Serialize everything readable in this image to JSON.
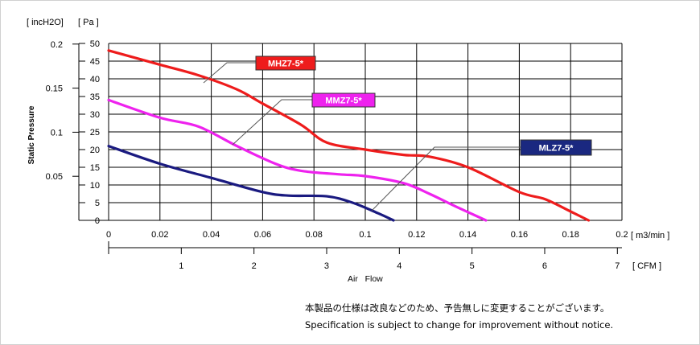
{
  "chart_data": {
    "type": "line",
    "x_unit_top": "[ m3/min ]",
    "x_unit_bottom": "[ CFM ]",
    "xlabel": "Air   Flow",
    "ylabel": "Static Pressure",
    "y_unit_left": "[ incH2O]",
    "y_unit_right": "[ Pa ]",
    "xlim": [
      0,
      0.2
    ],
    "ylim": [
      0,
      50
    ],
    "x_ticks": [
      "0",
      "0.02",
      "0.04",
      "0.06",
      "0.08",
      "0.1",
      "0.12",
      "0.14",
      "0.16",
      "0.18",
      "0.2"
    ],
    "y_ticks": [
      "0",
      "5",
      "10",
      "15",
      "20",
      "25",
      "30",
      "35",
      "40",
      "45",
      "50"
    ],
    "cfm_ticks": [
      "1",
      "2",
      "3",
      "4",
      "5",
      "6",
      "7"
    ],
    "inh2o_ticks": [
      "0.05",
      "0.1",
      "0.15",
      "0.2"
    ],
    "grid": true,
    "series": [
      {
        "name": "MHZ7-5*",
        "color": "#ee1c1c",
        "label_bg": "#ee1c1c",
        "label_fg": "#ffffff",
        "x": [
          0,
          0.02,
          0.035,
          0.05,
          0.06,
          0.075,
          0.085,
          0.1,
          0.115,
          0.125,
          0.14,
          0.16,
          0.17,
          0.18,
          0.187
        ],
        "y": [
          48,
          44,
          41,
          37,
          33,
          27,
          22,
          20,
          18.5,
          18,
          15,
          8,
          6,
          2.5,
          0
        ]
      },
      {
        "name": "MMZ7-5*",
        "color": "#ee22ee",
        "label_bg": "#ee22ee",
        "label_fg": "#ffffff",
        "x": [
          0,
          0.02,
          0.035,
          0.05,
          0.065,
          0.075,
          0.09,
          0.1,
          0.115,
          0.125,
          0.135,
          0.147
        ],
        "y": [
          34,
          29,
          26.5,
          21,
          16,
          14,
          13,
          12.5,
          10.5,
          7.5,
          4,
          0
        ]
      },
      {
        "name": "MLZ7-5*",
        "color": "#1a1a80",
        "label_bg": "#1a2880",
        "label_fg": "#ffffff",
        "x": [
          0,
          0.02,
          0.04,
          0.06,
          0.07,
          0.085,
          0.095,
          0.105,
          0.111
        ],
        "y": [
          21,
          16,
          12,
          8,
          7,
          6.8,
          5,
          2,
          0
        ]
      }
    ]
  },
  "notes": {
    "japanese": "本製品の仕様は改良などのため、予告無しに変更することがございます。",
    "english": "Specification is subject to change for improvement without notice."
  }
}
